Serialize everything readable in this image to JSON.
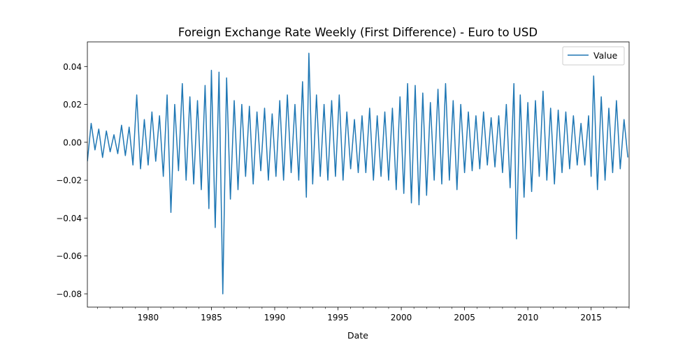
{
  "chart_data": {
    "type": "line",
    "title": "Foreign Exchange Rate Weekly (First Difference) - Euro to USD",
    "xlabel": "Date",
    "ylabel": "",
    "xlim": [
      1975.2,
      2018.0
    ],
    "ylim": [
      -0.087,
      0.053
    ],
    "x_ticks": [
      1980,
      1985,
      1990,
      1995,
      2000,
      2005,
      2010,
      2015
    ],
    "x_tick_labels": [
      "1980",
      "1985",
      "1990",
      "1995",
      "2000",
      "2005",
      "2010",
      "2015"
    ],
    "y_ticks": [
      0.04,
      0.02,
      0.0,
      -0.02,
      -0.04,
      -0.06,
      -0.08
    ],
    "y_tick_labels": [
      "0.04",
      "0.02",
      "0.00",
      "−0.02",
      "−0.04",
      "−0.06",
      "−0.08"
    ],
    "grid": false,
    "legend_position": "upper right",
    "series": [
      {
        "name": "Value",
        "color": "#1f77b4",
        "x": [
          1975.2,
          1975.5,
          1975.8,
          1976.1,
          1976.4,
          1976.7,
          1977.0,
          1977.3,
          1977.6,
          1977.9,
          1978.2,
          1978.5,
          1978.8,
          1979.1,
          1979.4,
          1979.7,
          1980.0,
          1980.3,
          1980.6,
          1980.9,
          1981.2,
          1981.5,
          1981.8,
          1982.1,
          1982.4,
          1982.7,
          1983.0,
          1983.3,
          1983.6,
          1983.9,
          1984.2,
          1984.5,
          1984.8,
          1985.0,
          1985.3,
          1985.6,
          1985.9,
          1986.2,
          1986.5,
          1986.8,
          1987.1,
          1987.4,
          1987.7,
          1988.0,
          1988.3,
          1988.6,
          1988.9,
          1989.2,
          1989.5,
          1989.8,
          1990.1,
          1990.4,
          1990.7,
          1991.0,
          1991.3,
          1991.6,
          1991.9,
          1992.2,
          1992.5,
          1992.7,
          1993.0,
          1993.3,
          1993.6,
          1993.9,
          1994.2,
          1994.5,
          1994.8,
          1995.1,
          1995.4,
          1995.7,
          1996.0,
          1996.3,
          1996.6,
          1996.9,
          1997.2,
          1997.5,
          1997.8,
          1998.1,
          1998.4,
          1998.7,
          1999.0,
          1999.3,
          1999.6,
          1999.9,
          2000.2,
          2000.5,
          2000.8,
          2001.1,
          2001.4,
          2001.7,
          2002.0,
          2002.3,
          2002.6,
          2002.9,
          2003.2,
          2003.5,
          2003.8,
          2004.1,
          2004.4,
          2004.7,
          2005.0,
          2005.3,
          2005.6,
          2005.9,
          2006.2,
          2006.5,
          2006.8,
          2007.1,
          2007.4,
          2007.7,
          2008.0,
          2008.3,
          2008.6,
          2008.9,
          2009.1,
          2009.4,
          2009.7,
          2010.0,
          2010.3,
          2010.6,
          2010.9,
          2011.2,
          2011.5,
          2011.8,
          2012.1,
          2012.4,
          2012.7,
          2013.0,
          2013.3,
          2013.6,
          2013.9,
          2014.2,
          2014.5,
          2014.8,
          2015.0,
          2015.2,
          2015.5,
          2015.8,
          2016.1,
          2016.4,
          2016.7,
          2017.0,
          2017.3,
          2017.6,
          2017.9
        ],
        "values": [
          -0.01,
          0.01,
          -0.004,
          0.007,
          -0.008,
          0.006,
          -0.005,
          0.004,
          -0.006,
          0.009,
          -0.007,
          0.008,
          -0.012,
          0.025,
          -0.014,
          0.012,
          -0.012,
          0.016,
          -0.01,
          0.014,
          -0.018,
          0.025,
          -0.037,
          0.02,
          -0.015,
          0.031,
          -0.02,
          0.024,
          -0.022,
          0.022,
          -0.025,
          0.03,
          -0.035,
          0.038,
          -0.045,
          0.037,
          -0.08,
          0.034,
          -0.03,
          0.022,
          -0.025,
          0.02,
          -0.018,
          0.019,
          -0.022,
          0.016,
          -0.015,
          0.018,
          -0.02,
          0.015,
          -0.018,
          0.022,
          -0.02,
          0.025,
          -0.016,
          0.02,
          -0.02,
          0.032,
          -0.029,
          0.047,
          -0.022,
          0.025,
          -0.018,
          0.02,
          -0.02,
          0.022,
          -0.018,
          0.025,
          -0.02,
          0.016,
          -0.014,
          0.012,
          -0.016,
          0.014,
          -0.016,
          0.018,
          -0.02,
          0.014,
          -0.018,
          0.016,
          -0.02,
          0.018,
          -0.025,
          0.024,
          -0.027,
          0.031,
          -0.032,
          0.03,
          -0.033,
          0.026,
          -0.028,
          0.021,
          -0.02,
          0.028,
          -0.022,
          0.031,
          -0.02,
          0.022,
          -0.025,
          0.02,
          -0.016,
          0.016,
          -0.015,
          0.014,
          -0.014,
          0.016,
          -0.012,
          0.013,
          -0.013,
          0.014,
          -0.016,
          0.02,
          -0.024,
          0.031,
          -0.051,
          0.025,
          -0.029,
          0.021,
          -0.026,
          0.022,
          -0.018,
          0.027,
          -0.02,
          0.018,
          -0.022,
          0.017,
          -0.016,
          0.016,
          -0.014,
          0.014,
          -0.012,
          0.01,
          -0.012,
          0.014,
          -0.018,
          0.035,
          -0.025,
          0.024,
          -0.02,
          0.018,
          -0.016,
          0.022,
          -0.014,
          0.012,
          -0.008
        ]
      }
    ]
  }
}
